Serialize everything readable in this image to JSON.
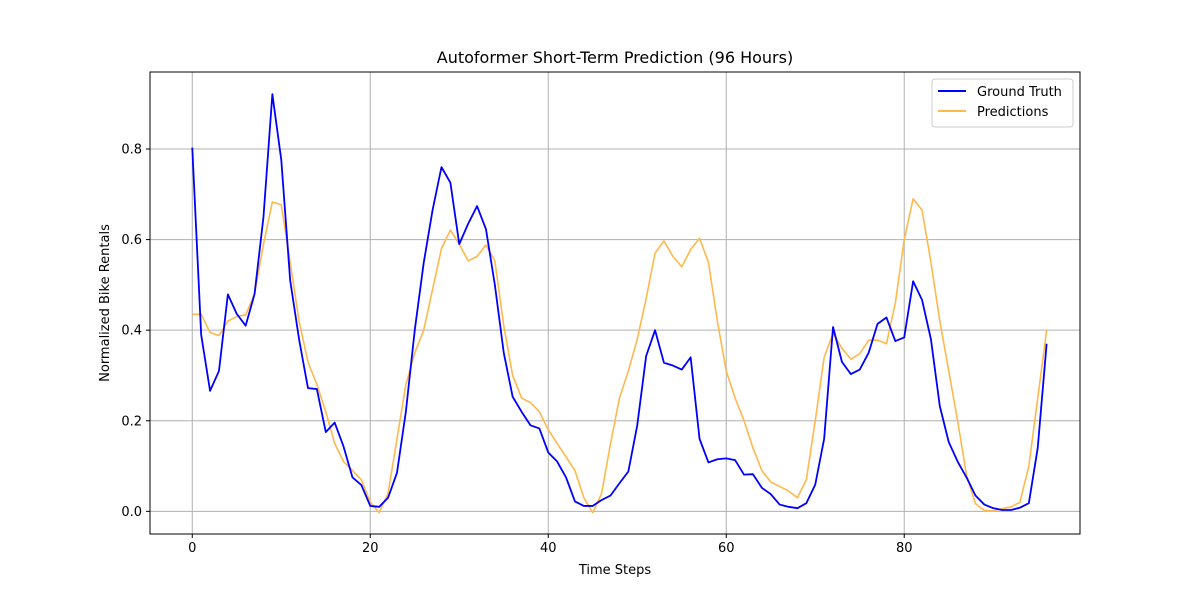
{
  "chart_data": {
    "type": "line",
    "title": "Autoformer Short-Term Prediction (96 Hours)",
    "xlabel": "Time Steps",
    "ylabel": "Normalized Bike Rentals",
    "xlim": [
      -4.75,
      99.75
    ],
    "ylim": [
      -0.05,
      0.97
    ],
    "xticks": [
      0,
      20,
      40,
      60,
      80
    ],
    "yticks": [
      0.0,
      0.2,
      0.4,
      0.6,
      0.8
    ],
    "xtick_labels": [
      "0",
      "20",
      "40",
      "60",
      "80"
    ],
    "ytick_labels": [
      "0.0",
      "0.2",
      "0.4",
      "0.6",
      "0.8"
    ],
    "grid": true,
    "legend_position": "top-right",
    "series": [
      {
        "name": "Ground Truth",
        "color": "#0000ff",
        "values": [
          0.803,
          0.39,
          0.266,
          0.31,
          0.479,
          0.436,
          0.41,
          0.48,
          0.65,
          0.921,
          0.776,
          0.51,
          0.38,
          0.272,
          0.27,
          0.175,
          0.196,
          0.143,
          0.075,
          0.058,
          0.012,
          0.01,
          0.03,
          0.085,
          0.22,
          0.4,
          0.548,
          0.665,
          0.76,
          0.726,
          0.59,
          0.635,
          0.674,
          0.623,
          0.5,
          0.35,
          0.253,
          0.22,
          0.19,
          0.183,
          0.13,
          0.11,
          0.075,
          0.022,
          0.012,
          0.012,
          0.025,
          0.035,
          0.062,
          0.088,
          0.19,
          0.343,
          0.4,
          0.328,
          0.322,
          0.313,
          0.34,
          0.16,
          0.108,
          0.115,
          0.117,
          0.113,
          0.081,
          0.082,
          0.052,
          0.038,
          0.015,
          0.01,
          0.007,
          0.018,
          0.059,
          0.16,
          0.407,
          0.33,
          0.303,
          0.313,
          0.35,
          0.414,
          0.428,
          0.376,
          0.384,
          0.508,
          0.467,
          0.38,
          0.232,
          0.153,
          0.11,
          0.075,
          0.035,
          0.015,
          0.007,
          0.003,
          0.003,
          0.008,
          0.018,
          0.14,
          0.37
        ]
      },
      {
        "name": "Predictions",
        "color": "#ffb84d",
        "values": [
          0.435,
          0.435,
          0.395,
          0.388,
          0.42,
          0.43,
          0.434,
          0.48,
          0.59,
          0.683,
          0.677,
          0.55,
          0.42,
          0.33,
          0.28,
          0.22,
          0.15,
          0.11,
          0.09,
          0.07,
          0.02,
          -0.003,
          0.04,
          0.16,
          0.28,
          0.35,
          0.4,
          0.49,
          0.58,
          0.621,
          0.59,
          0.553,
          0.563,
          0.588,
          0.553,
          0.41,
          0.3,
          0.25,
          0.24,
          0.22,
          0.18,
          0.15,
          0.12,
          0.09,
          0.03,
          -0.003,
          0.04,
          0.15,
          0.25,
          0.31,
          0.38,
          0.47,
          0.57,
          0.597,
          0.563,
          0.54,
          0.578,
          0.603,
          0.55,
          0.42,
          0.31,
          0.25,
          0.2,
          0.14,
          0.09,
          0.065,
          0.055,
          0.045,
          0.03,
          0.07,
          0.2,
          0.34,
          0.393,
          0.36,
          0.336,
          0.348,
          0.378,
          0.378,
          0.37,
          0.46,
          0.6,
          0.69,
          0.665,
          0.55,
          0.42,
          0.31,
          0.2,
          0.08,
          0.017,
          0.002,
          0.001,
          0.006,
          0.01,
          0.02,
          0.1,
          0.25,
          0.4
        ]
      }
    ]
  }
}
